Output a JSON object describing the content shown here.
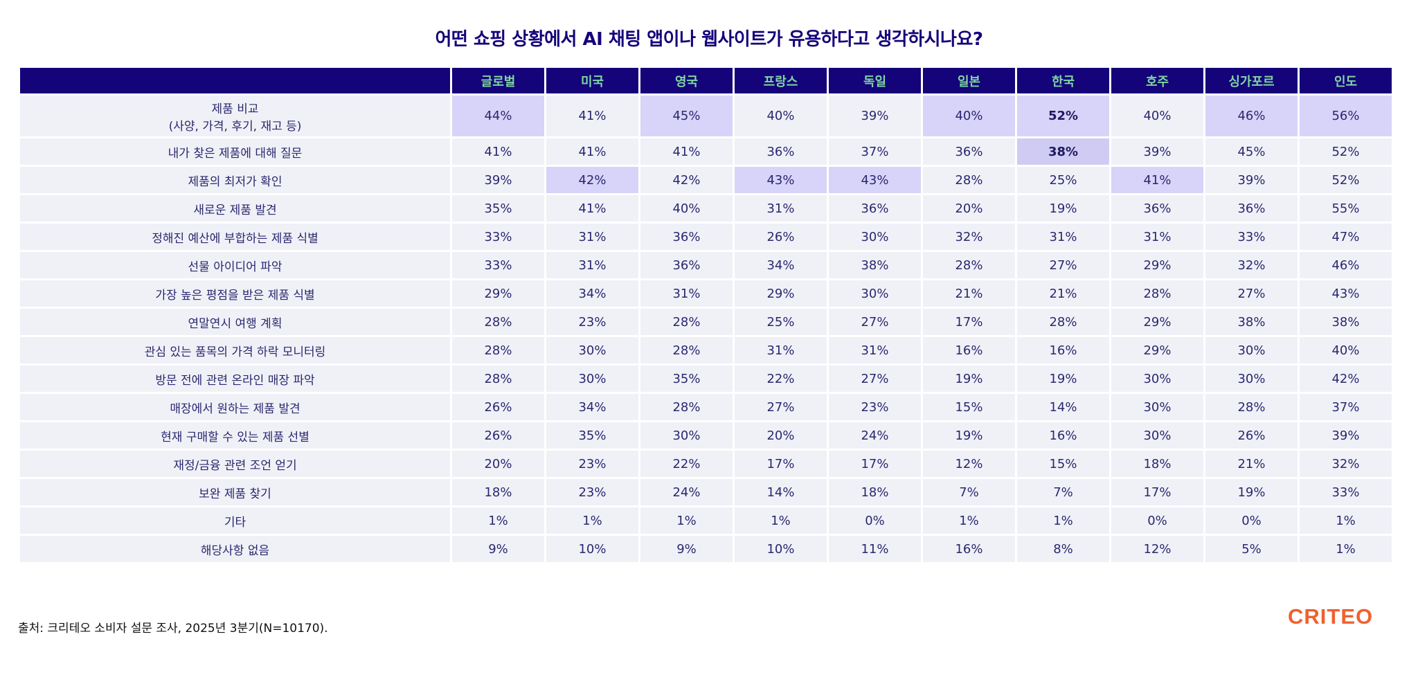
{
  "title": "어떤 쇼핑 상황에서 AI 채팅 앱이나 웹사이트가 유용하다고 생각하시나요?",
  "columns": [
    "글로벌",
    "미국",
    "영국",
    "프랑스",
    "독일",
    "일본",
    "한국",
    "호주",
    "싱가포르",
    "인도"
  ],
  "rows": [
    {
      "label": "제품 비교\n(사양, 가격, 후기, 재고 등)",
      "values": [
        "44%",
        "41%",
        "45%",
        "40%",
        "39%",
        "40%",
        "52%",
        "40%",
        "46%",
        "56%"
      ],
      "highlight": [
        0,
        2,
        5,
        6,
        8,
        9
      ],
      "bold": [
        6
      ]
    },
    {
      "label": "내가 찾은 제품에 대해 질문",
      "values": [
        "41%",
        "41%",
        "41%",
        "36%",
        "37%",
        "36%",
        "38%",
        "39%",
        "45%",
        "52%"
      ],
      "highlight": [
        6
      ],
      "bold": [
        6
      ]
    },
    {
      "label": "제품의 최저가 확인",
      "values": [
        "39%",
        "42%",
        "42%",
        "43%",
        "43%",
        "28%",
        "25%",
        "41%",
        "39%",
        "52%"
      ],
      "highlight": [
        1,
        3,
        4,
        7
      ],
      "bold": []
    },
    {
      "label": "새로운 제품 발견",
      "values": [
        "35%",
        "41%",
        "40%",
        "31%",
        "36%",
        "20%",
        "19%",
        "36%",
        "36%",
        "55%"
      ],
      "highlight": [],
      "bold": []
    },
    {
      "label": "정해진 예산에 부합하는 제품 식별",
      "values": [
        "33%",
        "31%",
        "36%",
        "26%",
        "30%",
        "32%",
        "31%",
        "31%",
        "33%",
        "47%"
      ],
      "highlight": [],
      "bold": []
    },
    {
      "label": "선물 아이디어 파악",
      "values": [
        "33%",
        "31%",
        "36%",
        "34%",
        "38%",
        "28%",
        "27%",
        "29%",
        "32%",
        "46%"
      ],
      "highlight": [],
      "bold": []
    },
    {
      "label": "가장 높은 평점을 받은 제품 식별",
      "values": [
        "29%",
        "34%",
        "31%",
        "29%",
        "30%",
        "21%",
        "21%",
        "28%",
        "27%",
        "43%"
      ],
      "highlight": [],
      "bold": []
    },
    {
      "label": "연말연시 여행 계획",
      "values": [
        "28%",
        "23%",
        "28%",
        "25%",
        "27%",
        "17%",
        "28%",
        "29%",
        "38%",
        "38%"
      ],
      "highlight": [],
      "bold": []
    },
    {
      "label": "관심 있는 품목의 가격 하락 모니터링",
      "values": [
        "28%",
        "30%",
        "28%",
        "31%",
        "31%",
        "16%",
        "16%",
        "29%",
        "30%",
        "40%"
      ],
      "highlight": [],
      "bold": []
    },
    {
      "label": "방문 전에 관련 온라인 매장 파악",
      "values": [
        "28%",
        "30%",
        "35%",
        "22%",
        "27%",
        "19%",
        "19%",
        "30%",
        "30%",
        "42%"
      ],
      "highlight": [],
      "bold": []
    },
    {
      "label": "매장에서 원하는 제품 발견",
      "values": [
        "26%",
        "34%",
        "28%",
        "27%",
        "23%",
        "15%",
        "14%",
        "30%",
        "28%",
        "37%"
      ],
      "highlight": [],
      "bold": []
    },
    {
      "label": "현재 구매할 수 있는 제품 선별",
      "values": [
        "26%",
        "35%",
        "30%",
        "20%",
        "24%",
        "19%",
        "16%",
        "30%",
        "26%",
        "39%"
      ],
      "highlight": [],
      "bold": []
    },
    {
      "label": "재정/금융 관련 조언 얻기",
      "values": [
        "20%",
        "23%",
        "22%",
        "17%",
        "17%",
        "12%",
        "15%",
        "18%",
        "21%",
        "32%"
      ],
      "highlight": [],
      "bold": []
    },
    {
      "label": "보완 제품 찾기",
      "values": [
        "18%",
        "23%",
        "24%",
        "14%",
        "18%",
        "7%",
        "7%",
        "17%",
        "19%",
        "33%"
      ],
      "highlight": [],
      "bold": []
    },
    {
      "label": "기타",
      "values": [
        "1%",
        "1%",
        "1%",
        "1%",
        "0%",
        "1%",
        "1%",
        "0%",
        "0%",
        "1%"
      ],
      "highlight": [],
      "bold": []
    },
    {
      "label": "해당사항 없음",
      "values": [
        "9%",
        "10%",
        "9%",
        "10%",
        "11%",
        "16%",
        "8%",
        "12%",
        "5%",
        "1%"
      ],
      "highlight": [],
      "bold": []
    }
  ],
  "footer": "출처: 크리테오 소비자 설문 조사, 2025년 3분기(N=10170).",
  "logo": "CRITEO",
  "colors": {
    "header_bg": "#140379",
    "header_text": "#7fd6a4",
    "highlight": "#d8d3f8",
    "row_bg": "#f0f1f7",
    "logo": "#f0612e"
  }
}
